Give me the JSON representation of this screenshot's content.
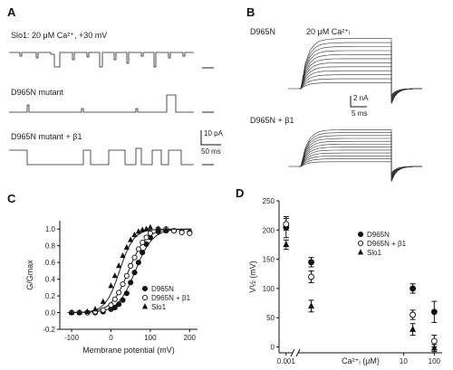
{
  "panels": {
    "A": {
      "letter": "A",
      "trace_labels": [
        "Slo1: 20 μM Ca²⁺, +30 mV",
        "D965N mutant",
        "D965N mutant + β1"
      ],
      "scale_current": "10 pA",
      "scale_time": "50 ms"
    },
    "B": {
      "letter": "B",
      "family_labels": [
        "D965N",
        "D965N + β1"
      ],
      "condition": "20 μM Ca²⁺ᵢ",
      "scale_current": "2 nA",
      "scale_time": "5 ms"
    },
    "C": {
      "letter": "C"
    },
    "D": {
      "letter": "D"
    }
  },
  "chart_data": [
    {
      "panel": "C",
      "type": "scatter",
      "xlabel": "Membrane potential (mV)",
      "ylabel": "G/Gmax",
      "xlim": [
        -130,
        220
      ],
      "ylim": [
        -0.2,
        1.1
      ],
      "xticks": [
        -100,
        0,
        100,
        200
      ],
      "yticks": [
        -0.2,
        0.0,
        0.2,
        0.4,
        0.6,
        0.8,
        1.0
      ],
      "ytick_labels": [
        "-0.2",
        "0.0",
        "0.2",
        "0.4",
        "0.6",
        "0.8",
        "1.0"
      ],
      "legend": "bottom-right",
      "series": [
        {
          "name": "D965N",
          "marker": "filled-circle",
          "v_half": 62,
          "slope": 22,
          "x": [
            -100,
            -80,
            -60,
            -40,
            -20,
            0,
            10,
            20,
            30,
            40,
            50,
            60,
            70,
            80,
            90,
            100,
            120,
            140,
            160,
            180,
            200
          ],
          "y": [
            0.0,
            0.0,
            0.0,
            0.0,
            0.01,
            0.04,
            0.06,
            0.1,
            0.15,
            0.23,
            0.36,
            0.48,
            0.6,
            0.72,
            0.82,
            0.9,
            0.97,
            0.98,
            0.98,
            0.97,
            0.96
          ]
        },
        {
          "name": "D965N + β1",
          "marker": "open-circle",
          "v_half": 45,
          "slope": 22,
          "x": [
            -100,
            -80,
            -60,
            -40,
            -20,
            0,
            10,
            20,
            30,
            40,
            50,
            60,
            70,
            80,
            90,
            100,
            120,
            140,
            160,
            180,
            200
          ],
          "y": [
            0.0,
            0.0,
            0.0,
            0.01,
            0.03,
            0.09,
            0.16,
            0.24,
            0.34,
            0.44,
            0.56,
            0.66,
            0.76,
            0.84,
            0.9,
            0.95,
            1.0,
            1.0,
            0.98,
            0.96,
            0.95
          ]
        },
        {
          "name": "Slo1",
          "marker": "filled-triangle",
          "v_half": 22,
          "slope": 18,
          "x": [
            -100,
            -80,
            -60,
            -40,
            -20,
            0,
            10,
            20,
            30,
            40,
            50,
            60,
            70,
            80,
            90,
            100,
            120,
            140
          ],
          "y": [
            0.0,
            0.0,
            0.01,
            0.04,
            0.13,
            0.32,
            0.44,
            0.56,
            0.68,
            0.78,
            0.87,
            0.93,
            0.97,
            0.99,
            1.0,
            1.02,
            1.0,
            0.99
          ]
        }
      ]
    },
    {
      "panel": "D",
      "type": "scatter",
      "xlabel": "Ca²⁺ᵢ (μM)",
      "ylabel": "V½ (mV)",
      "x_scale": "log",
      "xlim": [
        0.0008,
        180
      ],
      "ylim": [
        -10,
        250
      ],
      "xticks": [
        0.001,
        10,
        100
      ],
      "xtick_labels": [
        "0.001",
        "10",
        "100"
      ],
      "yticks": [
        0,
        50,
        100,
        150,
        200,
        250
      ],
      "axis_break": "x",
      "legend": "top-right",
      "series": [
        {
          "name": "D965N",
          "marker": "filled-circle",
          "x": [
            0.001,
            0.01,
            20,
            100
          ],
          "y": [
            205,
            145,
            100,
            60
          ],
          "err": [
            18,
            8,
            8,
            18
          ]
        },
        {
          "name": "D965N + β1",
          "marker": "open-circle",
          "x": [
            0.001,
            0.01,
            20,
            100
          ],
          "y": [
            210,
            120,
            55,
            10
          ],
          "err": [
            10,
            10,
            8,
            10
          ]
        },
        {
          "name": "Slo1",
          "marker": "filled-triangle",
          "x": [
            0.001,
            0.01,
            20,
            100
          ],
          "y": [
            175,
            70,
            30,
            -2
          ],
          "err": [
            8,
            10,
            10,
            6
          ]
        }
      ]
    }
  ]
}
